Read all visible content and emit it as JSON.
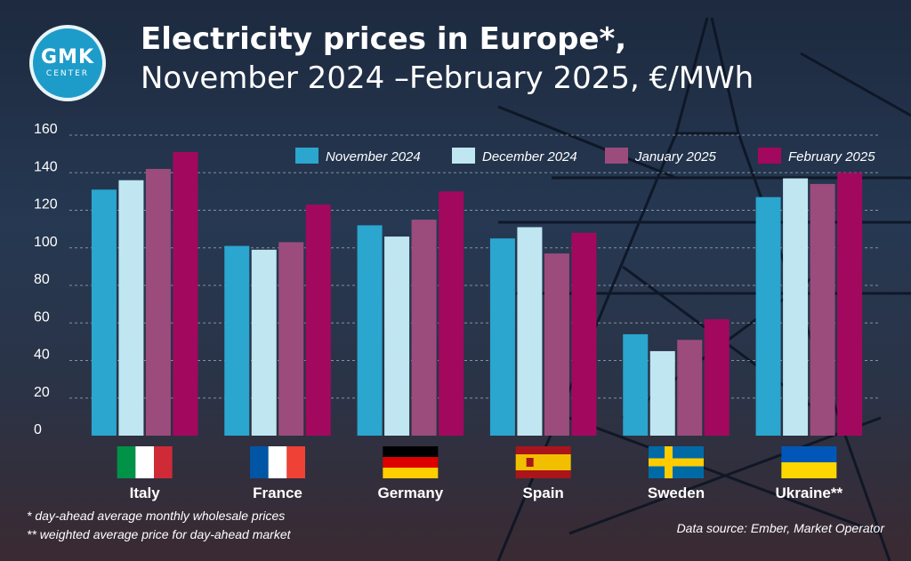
{
  "logo": {
    "main": "GMK",
    "sub": "CENTER"
  },
  "title": {
    "line1": "Electricity prices in Europe*,",
    "line2": "November 2024 –February 2025, €/MWh"
  },
  "footnotes": {
    "note1": "*  day-ahead average monthly wholesale prices",
    "note2": "** weighted average price for day-ahead market"
  },
  "source": "Data source: Ember, Market Operator",
  "chart_data": {
    "type": "bar",
    "categories": [
      "Italy",
      "France",
      "Germany",
      "Spain",
      "Sweden",
      "Ukraine**"
    ],
    "series": [
      {
        "name": "November 2024",
        "color": "#2aa6cf",
        "values": [
          131,
          101,
          112,
          105,
          54,
          127
        ]
      },
      {
        "name": "December 2024",
        "color": "#bfe6f1",
        "values": [
          136,
          99,
          106,
          111,
          45,
          137
        ]
      },
      {
        "name": "January 2025",
        "color": "#9b4c7c",
        "values": [
          142,
          103,
          115,
          97,
          51,
          134
        ]
      },
      {
        "name": "February 2025",
        "color": "#a3085f",
        "values": [
          151,
          123,
          130,
          108,
          62,
          140
        ]
      }
    ],
    "yticks": [
      0,
      20,
      40,
      60,
      80,
      100,
      120,
      140,
      160
    ],
    "ylim": [
      0,
      160
    ],
    "grid": true,
    "legend_position": "top",
    "flags": [
      "italy-flag",
      "france-flag",
      "germany-flag",
      "spain-flag",
      "sweden-flag",
      "ukraine-flag"
    ]
  }
}
